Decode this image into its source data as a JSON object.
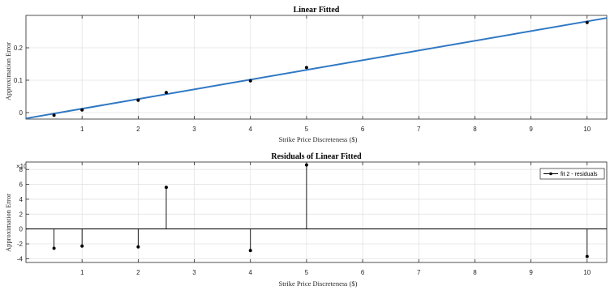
{
  "chart_data": [
    {
      "type": "scatter",
      "title": "Linear Fitted",
      "xlabel": "Strike Price Discreteness ($)",
      "ylabel": "Approximation Error",
      "xlim": [
        0,
        10.35
      ],
      "ylim": [
        -0.02,
        0.3
      ],
      "xticks": [
        1,
        2,
        3,
        4,
        5,
        6,
        7,
        8,
        9,
        10
      ],
      "yticks": [
        0,
        0.1,
        0.2
      ],
      "ytick_labels": [
        "0",
        "0.1",
        "0.2"
      ],
      "grid": true,
      "colors": {
        "points": "#000000",
        "fit": "#2f78c4"
      },
      "series": [
        {
          "kind": "points",
          "x": [
            0.5,
            1,
            2,
            2.5,
            4,
            5,
            10
          ],
          "y": [
            -0.008,
            0.008,
            0.038,
            0.062,
            0.098,
            0.139,
            0.278
          ]
        },
        {
          "kind": "fit_line",
          "x": [
            0,
            10.35
          ],
          "y": [
            -0.018,
            0.292
          ]
        }
      ]
    },
    {
      "type": "stem",
      "title": "Residuals of Linear Fitted",
      "xlabel": "Strike Price Discreteness ($)",
      "ylabel": "Approximation Error",
      "y_exponent_label": "×10⁻³",
      "xlim": [
        0,
        10.35
      ],
      "ylim": [
        -4.5,
        9
      ],
      "xticks": [
        1,
        2,
        3,
        4,
        5,
        6,
        7,
        8,
        9,
        10
      ],
      "yticks": [
        -4,
        -2,
        0,
        2,
        4,
        6,
        8
      ],
      "grid": true,
      "legend": {
        "position": "top-right",
        "entries": [
          "fit 2 - residuals"
        ]
      },
      "colors": {
        "stems": "#000000",
        "zero_line": "#000000"
      },
      "series": [
        {
          "name": "fit 2 - residuals",
          "x": [
            0.5,
            1,
            2,
            2.5,
            4,
            5,
            10
          ],
          "y": [
            -2.6,
            -2.3,
            -2.4,
            5.6,
            -2.9,
            8.6,
            -3.7
          ]
        }
      ]
    }
  ]
}
